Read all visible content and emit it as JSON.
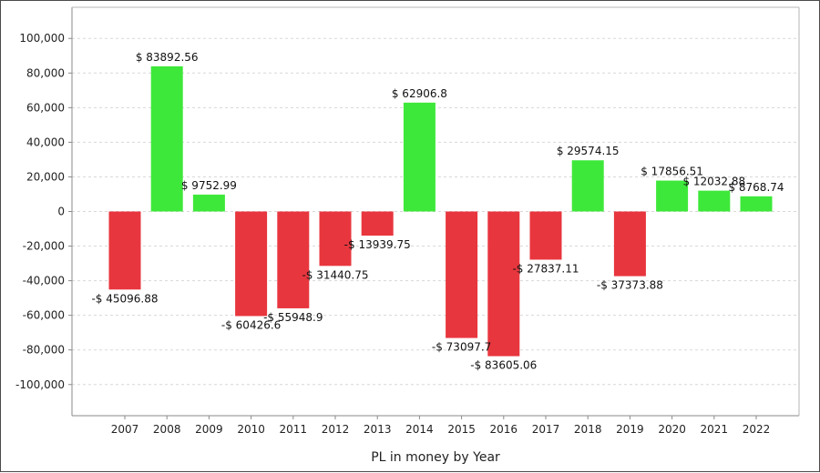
{
  "chart_data": {
    "type": "bar",
    "xlabel": "PL in money by Year",
    "categories": [
      "2007",
      "2008",
      "2009",
      "2010",
      "2011",
      "2012",
      "2013",
      "2014",
      "2015",
      "2016",
      "2017",
      "2018",
      "2019",
      "2020",
      "2021",
      "2022"
    ],
    "values": [
      -45096.88,
      83892.56,
      9752.99,
      -60426.6,
      -55948.9,
      -31440.75,
      -13939.75,
      62906.8,
      -73097.7,
      -83605.06,
      -27837.11,
      29574.15,
      -37373.88,
      17856.51,
      12032.88,
      8768.74
    ],
    "data_labels": [
      "-$ 45096.88",
      "$ 83892.56",
      "$ 9752.99",
      "-$ 60426.6",
      "-$ 55948.9",
      "-$ 31440.75",
      "-$ 13939.75",
      "$ 62906.8",
      "-$ 73097.7",
      "-$ 83605.06",
      "-$ 27837.11",
      "$ 29574.15",
      "-$ 37373.88",
      "$ 17856.51",
      "$ 12032.88",
      "$ 8768.74"
    ],
    "ylim": [
      -118000,
      118000
    ],
    "yticks": [
      100000,
      80000,
      60000,
      40000,
      20000,
      0,
      -20000,
      -40000,
      -60000,
      -80000,
      -100000
    ],
    "ytick_labels": [
      "100,000",
      "80,000",
      "60,000",
      "40,000",
      "20,000",
      "0",
      "-20,000",
      "-40,000",
      "-60,000",
      "-80,000",
      "-100,000"
    ],
    "grid": true,
    "colors": {
      "positive": "#3ee83a",
      "negative": "#e8363e",
      "grid": "#d8d8d8",
      "axis": "#8a8a8a"
    }
  }
}
